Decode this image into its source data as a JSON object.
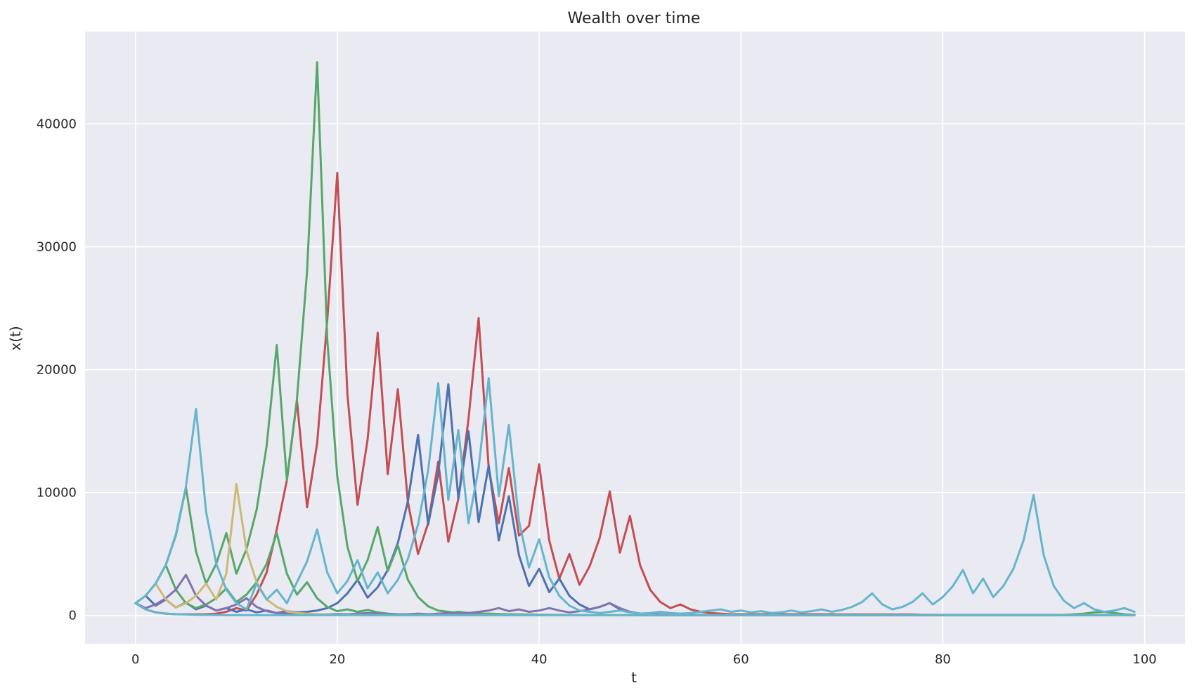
{
  "chart_data": {
    "type": "line",
    "title": "Wealth over time",
    "xlabel": "t",
    "ylabel": "x(t)",
    "xlim": [
      -5,
      104
    ],
    "ylim": [
      -2300,
      47500
    ],
    "x_ticks": [
      0,
      20,
      40,
      60,
      80,
      100
    ],
    "y_ticks": [
      0,
      10000,
      20000,
      30000,
      40000
    ],
    "grid": true,
    "legend": "none",
    "background": "#eaeaf2",
    "x": [
      0,
      1,
      2,
      3,
      4,
      5,
      6,
      7,
      8,
      9,
      10,
      11,
      12,
      13,
      14,
      15,
      16,
      17,
      18,
      19,
      20,
      21,
      22,
      23,
      24,
      25,
      26,
      27,
      28,
      29,
      30,
      31,
      32,
      33,
      34,
      35,
      36,
      37,
      38,
      39,
      40,
      41,
      42,
      43,
      44,
      45,
      46,
      47,
      48,
      49,
      50,
      51,
      52,
      53,
      54,
      55,
      56,
      57,
      58,
      59,
      60,
      61,
      62,
      63,
      64,
      65,
      66,
      67,
      68,
      69,
      70,
      71,
      72,
      73,
      74,
      75,
      76,
      77,
      78,
      79,
      80,
      81,
      82,
      83,
      84,
      85,
      86,
      87,
      88,
      89,
      90,
      91,
      92,
      93,
      94,
      95,
      96,
      97,
      98,
      99
    ],
    "series": [
      {
        "color": "#c44e52",
        "values": [
          1000,
          500,
          250,
          150,
          100,
          100,
          100,
          100,
          150,
          300,
          600,
          400,
          1700,
          3500,
          7000,
          11000,
          17500,
          8800,
          14000,
          24000,
          36000,
          18000,
          9000,
          14300,
          23000,
          11500,
          18400,
          9200,
          5000,
          7500,
          12500,
          6000,
          9500,
          16000,
          24200,
          12000,
          7500,
          12000,
          6500,
          7300,
          12300,
          6100,
          3000,
          5000,
          2500,
          4000,
          6300,
          10100,
          5100,
          8100,
          4100,
          2100,
          1100,
          600,
          900,
          500,
          300,
          200,
          150,
          100,
          100,
          100,
          100,
          100,
          100,
          100,
          100,
          100,
          100,
          100,
          80,
          80,
          80,
          80,
          80,
          80,
          80,
          80,
          60,
          60,
          50,
          50,
          50,
          50,
          50,
          50,
          50,
          50,
          50,
          50,
          50,
          50,
          50,
          50,
          50,
          50,
          50,
          50,
          50,
          50
        ]
      },
      {
        "color": "#4c72b0",
        "values": [
          1000,
          1600,
          800,
          1300,
          650,
          1050,
          500,
          800,
          400,
          600,
          300,
          500,
          250,
          400,
          200,
          350,
          250,
          300,
          400,
          600,
          1000,
          1800,
          2900,
          1450,
          2300,
          3700,
          5900,
          9300,
          14700,
          7400,
          11500,
          18800,
          9500,
          15000,
          7600,
          12200,
          6100,
          9700,
          4900,
          2400,
          3800,
          1900,
          3000,
          1600,
          900,
          500,
          700,
          1000,
          500,
          300,
          150,
          100,
          80,
          60,
          60,
          50,
          40,
          40,
          40,
          40,
          40,
          40,
          40,
          40,
          40,
          40,
          40,
          40,
          40,
          40,
          40,
          40,
          40,
          40,
          40,
          40,
          40,
          40,
          40,
          40,
          40,
          40,
          40,
          40,
          40,
          40,
          40,
          40,
          40,
          40,
          40,
          40,
          40,
          40,
          40,
          40,
          40,
          40,
          40,
          40
        ]
      },
      {
        "color": "#55a868",
        "values": [
          1000,
          1600,
          2600,
          4100,
          2100,
          1000,
          600,
          900,
          1400,
          2200,
          1100,
          1700,
          2700,
          4200,
          6700,
          3400,
          1700,
          2700,
          1400,
          700,
          350,
          500,
          300,
          450,
          250,
          150,
          100,
          100,
          150,
          100,
          60,
          200,
          300,
          200,
          150,
          150,
          120,
          100,
          80,
          80,
          60,
          60,
          50,
          50,
          40,
          40,
          40,
          40,
          40,
          40,
          30,
          30,
          30,
          30,
          30,
          30,
          30,
          30,
          30,
          30,
          30,
          30,
          30,
          30,
          30,
          30,
          30,
          30,
          30,
          30,
          30,
          30,
          30,
          30,
          30,
          30,
          30,
          30,
          30,
          30,
          30,
          30,
          30,
          30,
          30,
          30,
          30,
          30,
          30,
          30,
          30,
          30,
          30,
          30,
          30,
          30,
          30,
          30,
          30,
          30
        ]
      },
      {
        "color": "#55a868",
        "values": [
          1000,
          1600,
          2600,
          4100,
          6500,
          10400,
          5200,
          2600,
          4200,
          6700,
          3400,
          5400,
          8600,
          13800,
          22000,
          11000,
          17600,
          28000,
          45000,
          22500,
          11300,
          5600,
          2800,
          4500,
          7200,
          3600,
          5700,
          2900,
          1500,
          750,
          400,
          300,
          200,
          200,
          150,
          120,
          100,
          80,
          80,
          60,
          60,
          50,
          50,
          40,
          40,
          40,
          40,
          40,
          40,
          30,
          30,
          30,
          30,
          30,
          30,
          30,
          30,
          30,
          30,
          30,
          30,
          30,
          30,
          30,
          30,
          30,
          30,
          30,
          30,
          30,
          30,
          30,
          30,
          30,
          30,
          30,
          30,
          30,
          30,
          30,
          30,
          30,
          30,
          30,
          30,
          30,
          30,
          30,
          30,
          30,
          30,
          30,
          50,
          100,
          150,
          250,
          300,
          200,
          100,
          50
        ]
      },
      {
        "color": "#8172b2",
        "values": [
          1000,
          600,
          900,
          1400,
          2100,
          3300,
          1600,
          800,
          400,
          600,
          900,
          1400,
          700,
          350,
          200,
          150,
          100,
          80,
          80,
          100,
          120,
          100,
          150,
          200,
          150,
          100,
          80,
          100,
          120,
          100,
          150,
          200,
          150,
          200,
          300,
          400,
          600,
          350,
          500,
          300,
          400,
          600,
          400,
          250,
          350,
          500,
          700,
          1000,
          600,
          300,
          150,
          100,
          80,
          60,
          60,
          50,
          50,
          40,
          40,
          40,
          40,
          40,
          40,
          40,
          40,
          40,
          40,
          40,
          40,
          40,
          40,
          40,
          40,
          40,
          40,
          40,
          40,
          40,
          40,
          40,
          40,
          40,
          40,
          40,
          40,
          40,
          40,
          40,
          40,
          40,
          40,
          40,
          40,
          40,
          40,
          40,
          40,
          40,
          40,
          40
        ]
      },
      {
        "color": "#ccb974",
        "values": [
          1000,
          1600,
          2600,
          1300,
          650,
          1000,
          1600,
          2600,
          1300,
          3400,
          10700,
          5300,
          2700,
          1300,
          700,
          350,
          200,
          150,
          100,
          80,
          60,
          50,
          40,
          30,
          30,
          30,
          30,
          30,
          30,
          30,
          30,
          30,
          30,
          30,
          30,
          30,
          30,
          30,
          30,
          30,
          30,
          30,
          30,
          30,
          30,
          30,
          30,
          30,
          30,
          30,
          30,
          30,
          30,
          30,
          30,
          30,
          30,
          30,
          30,
          30,
          30,
          30,
          30,
          30,
          30,
          30,
          30,
          30,
          30,
          30,
          30,
          30,
          30,
          30,
          30,
          30,
          30,
          30,
          30,
          30,
          30,
          30,
          30,
          30,
          30,
          30,
          30,
          30,
          30,
          30,
          30,
          30,
          30,
          30,
          30,
          30,
          30,
          30,
          30,
          30
        ]
      },
      {
        "color": "#64b5cd",
        "values": [
          1000,
          1600,
          2600,
          4100,
          6600,
          10500,
          16800,
          8400,
          4200,
          2100,
          1000,
          500,
          2600,
          1300,
          2100,
          1000,
          2700,
          4400,
          7000,
          3500,
          1800,
          2800,
          4500,
          2200,
          3500,
          1800,
          2900,
          4600,
          7400,
          11800,
          18900,
          9400,
          15100,
          7500,
          12000,
          19300,
          9700,
          15500,
          7700,
          3900,
          6200,
          3100,
          1600,
          800,
          400,
          300,
          200,
          300,
          400,
          250,
          150,
          200,
          300,
          200,
          150,
          200,
          300,
          400,
          500,
          300,
          400,
          250,
          350,
          200,
          250,
          400,
          250,
          350,
          500,
          300,
          450,
          700,
          1100,
          1800,
          900,
          500,
          700,
          1100,
          1800,
          900,
          1500,
          2400,
          3700,
          1800,
          3000,
          1500,
          2400,
          3800,
          6100,
          9800,
          4900,
          2400,
          1200,
          600,
          1000,
          500,
          300,
          400,
          600,
          300
        ]
      },
      {
        "color": "#64b5cd",
        "values": [
          1000,
          500,
          250,
          150,
          100,
          80,
          60,
          50,
          40,
          30,
          30,
          30,
          30,
          30,
          30,
          30,
          30,
          30,
          30,
          30,
          30,
          30,
          30,
          30,
          30,
          30,
          30,
          30,
          30,
          30,
          30,
          30,
          30,
          30,
          30,
          30,
          30,
          30,
          30,
          30,
          30,
          30,
          30,
          30,
          30,
          30,
          30,
          30,
          30,
          30,
          30,
          30,
          30,
          30,
          30,
          30,
          30,
          30,
          30,
          30,
          30,
          30,
          30,
          30,
          30,
          30,
          30,
          30,
          30,
          30,
          30,
          30,
          30,
          30,
          30,
          30,
          30,
          30,
          30,
          30,
          30,
          30,
          30,
          30,
          30,
          30,
          30,
          30,
          30,
          30,
          30,
          30,
          30,
          30,
          30,
          30,
          30,
          30,
          30,
          30
        ]
      }
    ]
  }
}
